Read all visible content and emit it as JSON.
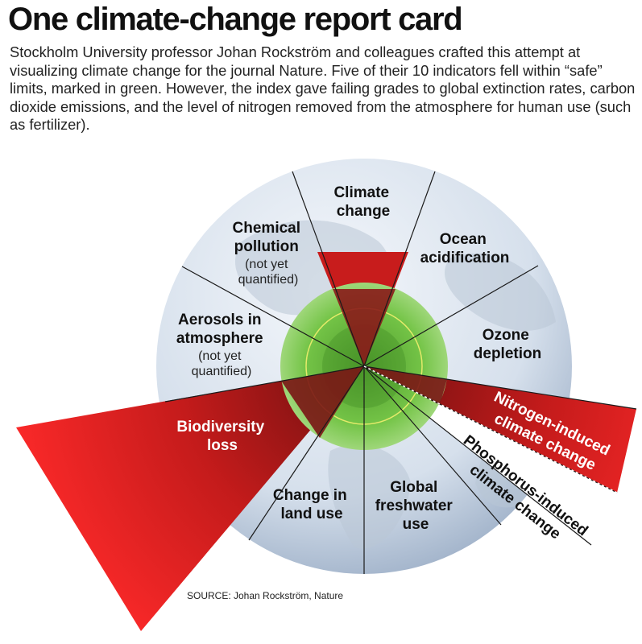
{
  "title": "One climate-change report card",
  "intro": "Stockholm University professor Johan Rockström and colleagues crafted this attempt at visualizing climate change for the journal Nature. Five of their 10 indicators fell within “safe” limits, marked in green. However, the index gave failing grades to global extinction rates, carbon dioxide emissions, and the level of nitrogen removed from the atmosphere for human use (such as fertilizer).",
  "segments": {
    "climate_change": [
      "Climate",
      "change"
    ],
    "ocean_acidification": [
      "Ocean",
      "acidification"
    ],
    "ozone_depletion": [
      "Ozone",
      "depletion"
    ],
    "nitrogen": [
      "Nitrogen-induced",
      "climate change"
    ],
    "phosphorus": [
      "Phosphorus-induced",
      "climate change"
    ],
    "freshwater": [
      "Global",
      "freshwater",
      "use"
    ],
    "land_use": [
      "Change in",
      "land use"
    ],
    "biodiversity": [
      "Biodiversity",
      "loss"
    ],
    "aerosols": [
      "Aerosols in",
      "atmosphere"
    ],
    "chemical": [
      "Chemical",
      "pollution"
    ],
    "not_quantified": [
      "(not yet",
      "quantified)"
    ]
  },
  "status": {
    "exceeded": [
      "Climate change",
      "Biodiversity loss",
      "Nitrogen-induced climate change"
    ],
    "safe_green": [
      "Ocean acidification",
      "Ozone depletion",
      "Phosphorus-induced climate change",
      "Global freshwater use",
      "Change in land use"
    ],
    "not_quantified": [
      "Chemical pollution",
      "Aerosols in atmosphere"
    ]
  },
  "colors": {
    "exceeded": "#e01e1e",
    "safe": "#6cbf3e",
    "globe": "#dfe8f2"
  },
  "source": "SOURCE: Johan Rockström, Nature"
}
